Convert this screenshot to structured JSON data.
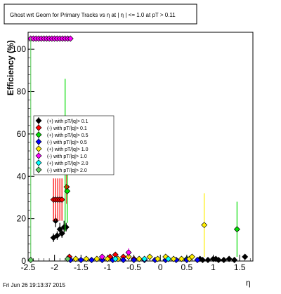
{
  "chart_data": {
    "type": "scatter",
    "title": "Ghost wrt Geom for Primary Tracks vs  η at | η | <= 1.0 at pT > 0.11",
    "xlabel": "η",
    "ylabel": "Efficiency (%)",
    "xlim": [
      -2.5,
      1.75
    ],
    "ylim": [
      0,
      108
    ],
    "x_ticks": [
      -2.5,
      -2,
      -1.5,
      -1,
      -0.5,
      0,
      0.5,
      1,
      1.5
    ],
    "x_tick_labels": [
      "-2.5",
      "-2",
      "-1.5",
      "-1",
      "-0.5",
      "0",
      "0.5",
      "1",
      "1.5"
    ],
    "y_ticks": [
      0,
      20,
      40,
      60,
      80,
      100
    ],
    "y_tick_labels": [
      "0",
      "20",
      "40",
      "60",
      "80",
      "100"
    ],
    "grid": false,
    "legend_position": "left-middle",
    "series": [
      {
        "name": "(+) with pT/|q|> 0.1",
        "color": "#000000",
        "points": [
          [
            -2.02,
            11
          ],
          [
            -1.98,
            19
          ],
          [
            -1.95,
            12
          ],
          [
            -1.9,
            15
          ],
          [
            -1.86,
            13
          ],
          [
            -1.82,
            16
          ],
          [
            -1.78,
            16
          ],
          [
            0.75,
            1
          ],
          [
            0.8,
            0.5
          ],
          [
            0.9,
            0.5
          ],
          [
            1.0,
            1
          ],
          [
            1.05,
            1
          ],
          [
            1.1,
            0.5
          ],
          [
            1.2,
            0.5
          ],
          [
            1.3,
            1
          ],
          [
            1.4,
            0.5
          ],
          [
            1.6,
            2
          ]
        ],
        "errors": [
          2,
          3,
          2,
          3,
          2,
          3,
          2,
          0.5,
          0.5,
          0.5,
          0.5,
          0.5,
          0.5,
          0.5,
          0.5,
          0.5,
          0.5
        ]
      },
      {
        "name": "(-) with pT/|q|> 0.1",
        "color": "#ff0000",
        "points": [
          [
            -2.02,
            29
          ],
          [
            -1.98,
            29
          ],
          [
            -1.94,
            29
          ],
          [
            -1.9,
            29
          ],
          [
            -1.86,
            29
          ],
          [
            -1.77,
            35
          ],
          [
            -1.72,
            2
          ],
          [
            -0.95,
            2
          ],
          [
            -0.85,
            3
          ],
          [
            -0.7,
            2
          ],
          [
            -0.5,
            1
          ]
        ],
        "errors": [
          10,
          10,
          10,
          10,
          10,
          8,
          1,
          1,
          1,
          1,
          1
        ]
      },
      {
        "name": "(+) with pT/|q|> 0.5",
        "color": "#00dd00",
        "points": [
          [
            -1.8,
            50
          ],
          [
            -1.76,
            33
          ],
          [
            0.5,
            1
          ],
          [
            1.45,
            15
          ]
        ],
        "errors": [
          36,
          15,
          0.5,
          13
        ]
      },
      {
        "name": "(-) with pT/|q|> 0.5",
        "color": "#0000ff",
        "points": [
          [
            -1.7,
            0.5
          ],
          [
            -1.5,
            0.5
          ],
          [
            -1.3,
            0.5
          ],
          [
            -1.1,
            0.5
          ],
          [
            -0.9,
            0.5
          ],
          [
            -0.7,
            0.5
          ],
          [
            -0.5,
            0.5
          ],
          [
            -0.3,
            0.5
          ],
          [
            -0.1,
            0.5
          ],
          [
            0.1,
            0.5
          ],
          [
            0.3,
            0.5
          ],
          [
            0.5,
            0.5
          ],
          [
            0.7,
            0.5
          ]
        ],
        "errors": [
          0.3,
          0.3,
          0.3,
          0.3,
          0.3,
          0.3,
          0.3,
          0.3,
          0.3,
          0.3,
          0.3,
          0.3,
          0.3
        ]
      },
      {
        "name": "(+) with pT/|q|> 1.0",
        "color": "#ffee00",
        "points": [
          [
            -1.6,
            1
          ],
          [
            -1.4,
            1
          ],
          [
            -1.2,
            1
          ],
          [
            -1.0,
            1
          ],
          [
            -0.8,
            1
          ],
          [
            -0.6,
            2
          ],
          [
            -0.4,
            1
          ],
          [
            -0.2,
            2
          ],
          [
            -0.05,
            1
          ],
          [
            0.1,
            2
          ],
          [
            0.25,
            1
          ],
          [
            0.4,
            1
          ],
          [
            0.55,
            1
          ],
          [
            0.6,
            2
          ],
          [
            0.83,
            17
          ]
        ],
        "errors": [
          1,
          1,
          1,
          1,
          1,
          1,
          1,
          1,
          1,
          1,
          1,
          1,
          1,
          1,
          15
        ]
      },
      {
        "name": "(-) with pT/|q|> 1.0",
        "color": "#ff00ff",
        "points": [
          [
            -2.45,
            105
          ],
          [
            -2.4,
            105
          ],
          [
            -2.35,
            105
          ],
          [
            -2.3,
            105
          ],
          [
            -2.25,
            105
          ],
          [
            -2.2,
            105
          ],
          [
            -2.15,
            105
          ],
          [
            -2.1,
            105
          ],
          [
            -2.05,
            105
          ],
          [
            -2.0,
            105
          ],
          [
            -1.95,
            105
          ],
          [
            -1.9,
            105
          ],
          [
            -1.85,
            105
          ],
          [
            -1.8,
            105
          ],
          [
            -1.75,
            105
          ],
          [
            -1.7,
            105
          ],
          [
            -1.1,
            2
          ],
          [
            -0.6,
            4
          ]
        ],
        "errors": [
          0,
          0,
          0,
          0,
          0,
          0,
          0,
          0,
          0,
          0,
          0,
          0,
          0,
          0,
          0,
          0,
          1,
          2
        ]
      },
      {
        "name": "(+) with pT/|q|> 2.0",
        "color": "#00ffff",
        "points": [
          [
            -0.85,
            1
          ],
          [
            -0.3,
            1
          ],
          [
            0.15,
            1
          ]
        ],
        "errors": [
          0.5,
          0.5,
          0.5
        ]
      },
      {
        "name": "(-) with pT/|q|> 2.0",
        "color": "#66cc66",
        "points": [
          [
            -2.45,
            0.5
          ],
          [
            -1.75,
            1
          ]
        ],
        "errors": [
          105,
          1
        ]
      }
    ]
  },
  "footer": {
    "timestamp": "Fri Jun 26 19:13:37 2015"
  }
}
